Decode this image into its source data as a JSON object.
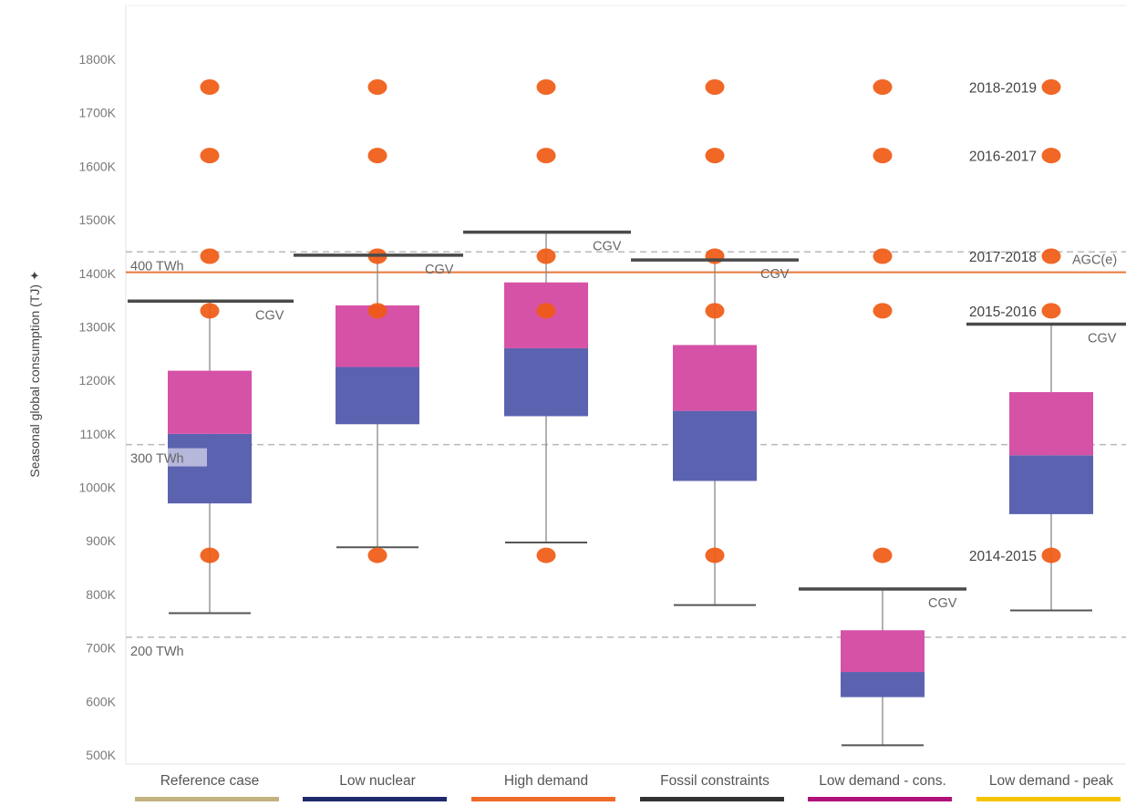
{
  "chart_data": {
    "type": "box",
    "ylabel": "Seasonal global consumption (TJ)",
    "ylim": [
      480000,
      1860000
    ],
    "yticks": [
      500000,
      600000,
      700000,
      800000,
      900000,
      1000000,
      1100000,
      1200000,
      1300000,
      1400000,
      1500000,
      1600000,
      1700000,
      1800000
    ],
    "ytick_labels": [
      "500K",
      "600K",
      "700K",
      "800K",
      "900K",
      "1000K",
      "1100K",
      "1200K",
      "1300K",
      "1400K",
      "1500K",
      "1600K",
      "1700K",
      "1800K"
    ],
    "categories": [
      "Reference case",
      "Low nuclear",
      "High demand",
      "Fossil constraints",
      "Low demand - cons.",
      "Low demand - peak"
    ],
    "category_colors": [
      "#c2b280",
      "#1f2a6e",
      "#f06a2a",
      "#333333",
      "#b0127a",
      "#f5c400"
    ],
    "boxes": [
      {
        "whisker_low": 765000,
        "q1": 970000,
        "median": 1100000,
        "q3": 1218000,
        "whisker_high": 1348000,
        "cgv": 1348000
      },
      {
        "whisker_low": 888000,
        "q1": 1118000,
        "median": 1225000,
        "q3": 1340000,
        "whisker_high": 1434000,
        "cgv": 1434000
      },
      {
        "whisker_low": 897000,
        "q1": 1133000,
        "median": 1260000,
        "q3": 1383000,
        "whisker_high": 1477000,
        "cgv": 1477000
      },
      {
        "whisker_low": 780000,
        "q1": 1012000,
        "median": 1143000,
        "q3": 1266000,
        "whisker_high": 1425000,
        "cgv": 1425000
      },
      {
        "whisker_low": 518000,
        "q1": 608000,
        "median": 655000,
        "q3": 733000,
        "whisker_high": 810000,
        "cgv": 810000
      },
      {
        "whisker_low": 770000,
        "q1": 950000,
        "median": 1060000,
        "q3": 1178000,
        "whisker_high": 1305000,
        "cgv": 1305000
      }
    ],
    "box_lower_color": "#5b63b0",
    "box_upper_color": "#d652a6",
    "cgv_label": "CGV",
    "historical_years": [
      {
        "label": "2018-2019",
        "value": 1748000
      },
      {
        "label": "2016-2017",
        "value": 1620000
      },
      {
        "label": "2017-2018",
        "value": 1432000
      },
      {
        "label": "2015-2016",
        "value": 1330000
      },
      {
        "label": "2014-2015",
        "value": 873000
      }
    ],
    "dot_color": "#f05a14",
    "reference_lines": [
      {
        "label": "400 TWh",
        "value": 1440000,
        "style": "dashed"
      },
      {
        "label": "300 TWh",
        "value": 1080000,
        "style": "dashed"
      },
      {
        "label": "200 TWh",
        "value": 720000,
        "style": "dashed"
      }
    ],
    "agc_line": {
      "label": "AGC(e)",
      "value": 1402000,
      "color": "#e8783a"
    }
  }
}
